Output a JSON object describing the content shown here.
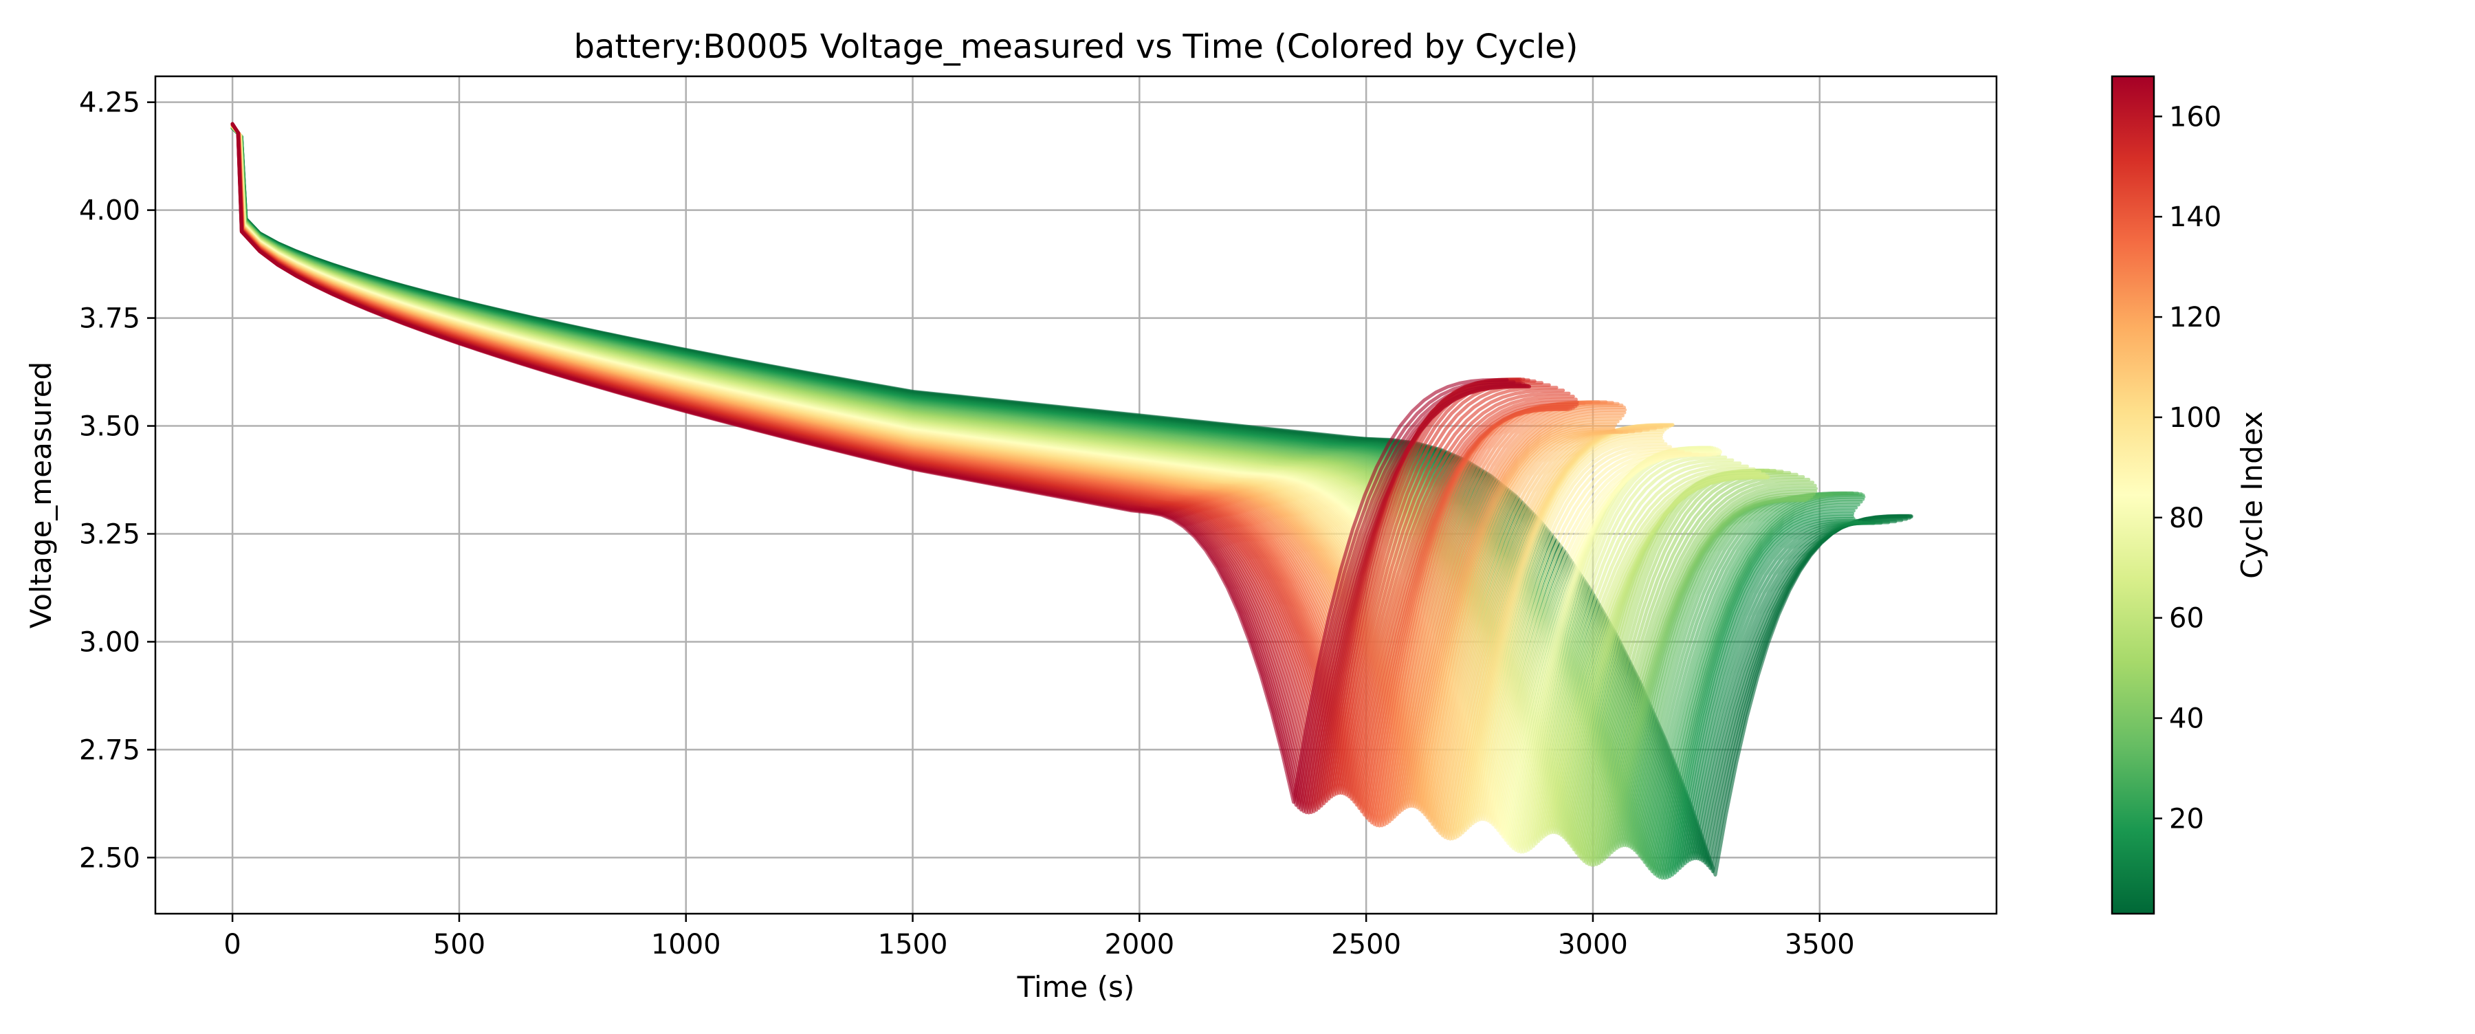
{
  "chart_data": {
    "type": "line",
    "title": "battery:B0005 Voltage_measured vs Time (Colored by Cycle)",
    "xlabel": "Time (s)",
    "ylabel": "Voltage_measured",
    "xlim": [
      -170,
      3890
    ],
    "ylim": [
      2.37,
      4.31
    ],
    "xticks": [
      0,
      500,
      1000,
      1500,
      2000,
      2500,
      3000,
      3500
    ],
    "xtick_labels": [
      "0",
      "500",
      "1000",
      "1500",
      "2000",
      "2500",
      "3000",
      "3500"
    ],
    "yticks": [
      2.5,
      2.75,
      3.0,
      3.25,
      3.5,
      3.75,
      4.0,
      4.25
    ],
    "ytick_labels": [
      "2.50",
      "2.75",
      "3.00",
      "3.25",
      "3.50",
      "3.75",
      "4.00",
      "4.25"
    ],
    "grid": true,
    "colormap": "RdYlGn_r",
    "colorbar": {
      "label": "Cycle Index",
      "range": [
        1,
        168
      ],
      "ticks": [
        20,
        40,
        60,
        80,
        100,
        120,
        140,
        160
      ],
      "tick_labels": [
        "20",
        "40",
        "60",
        "80",
        "100",
        "120",
        "140",
        "160"
      ],
      "colors": [
        "#006837",
        "#1a9850",
        "#66bd63",
        "#a6d96a",
        "#d9ef8b",
        "#ffffbf",
        "#fee08b",
        "#fdae61",
        "#f46d43",
        "#d73027",
        "#a50026"
      ]
    },
    "series_summary": {
      "cycle_count": 168,
      "first_cycle": {
        "cycle": 1,
        "start_voltage": 4.19,
        "voltage_at_1500s": 3.58,
        "voltage_at_2500s": 3.47,
        "min_voltage": 2.46,
        "min_voltage_time": 3270,
        "end_time": 3690,
        "end_voltage": 3.27
      },
      "last_cycle": {
        "cycle": 168,
        "start_voltage": 4.2,
        "voltage_at_1500s": 3.4,
        "voltage_at_2000s": 3.3,
        "min_voltage": 2.64,
        "min_voltage_time": 2340,
        "end_time": 2800,
        "end_voltage": 3.62
      }
    }
  }
}
